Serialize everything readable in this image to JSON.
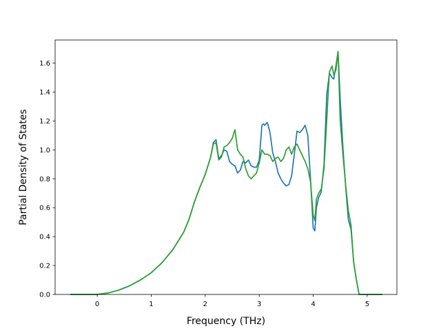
{
  "chart_data": {
    "type": "line",
    "title": "",
    "xlabel": "Frequency (THz)",
    "ylabel": "Partial Density of States",
    "xlim": [
      -0.78,
      5.55
    ],
    "ylim": [
      0.0,
      1.76
    ],
    "xticks": [
      "0",
      "1",
      "2",
      "3",
      "4",
      "5"
    ],
    "yticks": [
      "0.0",
      "0.2",
      "0.4",
      "0.6",
      "0.8",
      "1.0",
      "1.2",
      "1.4",
      "1.6"
    ],
    "grid": false,
    "legend": "none",
    "colors": {
      "series1": "#1f77b4",
      "series2": "#2ca02c"
    },
    "series": [
      {
        "x": [
          -0.5,
          0.0,
          0.2,
          0.4,
          0.6,
          0.8,
          1.0,
          1.2,
          1.4,
          1.6,
          1.7,
          1.8,
          1.9,
          2.0,
          2.1,
          2.15,
          2.2,
          2.25,
          2.3,
          2.35,
          2.4,
          2.45,
          2.5,
          2.55,
          2.6,
          2.65,
          2.7,
          2.75,
          2.8,
          2.85,
          2.9,
          2.95,
          3.0,
          3.05,
          3.08,
          3.1,
          3.15,
          3.2,
          3.25,
          3.3,
          3.35,
          3.4,
          3.45,
          3.5,
          3.55,
          3.6,
          3.65,
          3.7,
          3.75,
          3.8,
          3.85,
          3.9,
          3.95,
          4.0,
          4.03,
          4.06,
          4.1,
          4.15,
          4.2,
          4.25,
          4.3,
          4.35,
          4.38,
          4.42,
          4.46,
          4.5,
          4.55,
          4.6,
          4.65,
          4.7,
          4.75,
          4.8,
          4.85,
          5.0,
          5.28
        ],
        "y": [
          0.0,
          0.0,
          0.01,
          0.03,
          0.06,
          0.1,
          0.15,
          0.22,
          0.31,
          0.43,
          0.52,
          0.64,
          0.74,
          0.83,
          0.95,
          1.05,
          1.07,
          0.94,
          0.96,
          1.0,
          0.99,
          0.92,
          0.9,
          0.89,
          0.84,
          0.86,
          0.92,
          0.91,
          0.93,
          0.89,
          0.88,
          0.88,
          0.93,
          1.17,
          1.18,
          1.17,
          1.19,
          1.12,
          0.98,
          0.92,
          0.84,
          0.8,
          0.77,
          0.75,
          0.76,
          0.82,
          0.97,
          1.13,
          1.12,
          1.14,
          1.17,
          1.1,
          0.8,
          0.46,
          0.44,
          0.6,
          0.67,
          0.71,
          0.9,
          1.38,
          1.53,
          1.5,
          1.49,
          1.58,
          1.68,
          1.35,
          1.02,
          0.75,
          0.52,
          0.45,
          0.22,
          0.1,
          0.0,
          0.0,
          0.0
        ]
      },
      {
        "x": [
          -0.5,
          0.0,
          0.2,
          0.4,
          0.6,
          0.8,
          1.0,
          1.2,
          1.4,
          1.6,
          1.7,
          1.8,
          1.9,
          2.0,
          2.1,
          2.15,
          2.2,
          2.25,
          2.3,
          2.35,
          2.4,
          2.45,
          2.5,
          2.55,
          2.6,
          2.65,
          2.7,
          2.75,
          2.8,
          2.85,
          2.9,
          2.95,
          3.0,
          3.05,
          3.1,
          3.15,
          3.2,
          3.25,
          3.3,
          3.35,
          3.4,
          3.45,
          3.5,
          3.55,
          3.6,
          3.65,
          3.7,
          3.75,
          3.8,
          3.85,
          3.9,
          3.95,
          4.0,
          4.03,
          4.06,
          4.1,
          4.15,
          4.2,
          4.25,
          4.3,
          4.35,
          4.38,
          4.42,
          4.46,
          4.5,
          4.55,
          4.6,
          4.65,
          4.7,
          4.75,
          4.8,
          4.85,
          5.0,
          5.28
        ],
        "y": [
          0.0,
          0.0,
          0.01,
          0.03,
          0.06,
          0.1,
          0.15,
          0.22,
          0.31,
          0.43,
          0.52,
          0.64,
          0.74,
          0.83,
          0.95,
          1.04,
          1.05,
          0.93,
          0.95,
          1.02,
          1.03,
          1.05,
          1.08,
          1.14,
          1.0,
          0.97,
          0.95,
          0.87,
          0.82,
          0.8,
          0.82,
          0.84,
          0.91,
          1.0,
          0.97,
          0.97,
          0.96,
          0.92,
          0.94,
          0.95,
          0.92,
          0.94,
          1.0,
          1.02,
          0.97,
          1.02,
          1.04,
          1.0,
          0.96,
          0.92,
          0.87,
          0.78,
          0.55,
          0.51,
          0.66,
          0.7,
          0.73,
          0.87,
          1.2,
          1.54,
          1.58,
          1.52,
          1.55,
          1.68,
          1.2,
          0.97,
          0.76,
          0.58,
          0.48,
          0.22,
          0.1,
          0.0,
          0.0,
          0.0
        ]
      }
    ]
  }
}
